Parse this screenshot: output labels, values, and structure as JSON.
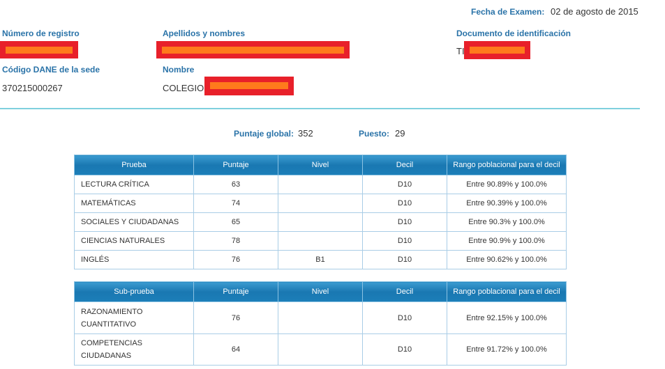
{
  "header": {
    "exam_date_label": "Fecha de Examen:",
    "exam_date": "02 de agosto de 2015"
  },
  "student": {
    "registration_label": "Número de registro",
    "names_label": "Apellidos y nombres",
    "id_label": "Documento de identificación",
    "id_prefix": "TI",
    "dane_label": "Código DANE de la sede",
    "dane_code": "370215000267",
    "school_label": "Nombre",
    "school_prefix": "COLEGIO"
  },
  "summary": {
    "global_label": "Puntaje global:",
    "global_score": 352,
    "rank_label": "Puesto:",
    "rank": 29
  },
  "tables": [
    {
      "columns": [
        "Prueba",
        "Puntaje",
        "Nivel",
        "Decil",
        "Rango poblacional para el decil"
      ],
      "rows": [
        [
          "LECTURA CRÍTICA",
          63,
          "",
          "D10",
          "Entre 90.89% y 100.0%"
        ],
        [
          "MATEMÁTICAS",
          74,
          "",
          "D10",
          "Entre 90.39% y 100.0%"
        ],
        [
          "SOCIALES Y CIUDADANAS",
          65,
          "",
          "D10",
          "Entre 90.3% y 100.0%"
        ],
        [
          "CIENCIAS NATURALES",
          78,
          "",
          "D10",
          "Entre 90.9% y 100.0%"
        ],
        [
          "INGLÉS",
          76,
          "B1",
          "D10",
          "Entre 90.62% y 100.0%"
        ]
      ]
    },
    {
      "columns": [
        "Sub-prueba",
        "Puntaje",
        "Nivel",
        "Decil",
        "Rango poblacional para el decil"
      ],
      "rows": [
        [
          "RAZONAMIENTO CUANTITATIVO",
          76,
          "",
          "D10",
          "Entre 92.15% y 100.0%"
        ],
        [
          "COMPETENCIAS CIUDADANAS",
          64,
          "",
          "D10",
          "Entre 91.72% y 100.0%"
        ]
      ]
    }
  ]
}
